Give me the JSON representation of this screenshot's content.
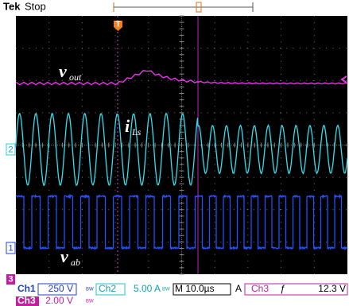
{
  "header": {
    "brand": "Tek",
    "status": "Stop"
  },
  "trigger_marker": "T",
  "trace_labels": {
    "vout": {
      "main": "v",
      "sub": "out"
    },
    "iLs": {
      "main": "i",
      "sub": "Ls"
    },
    "vab": {
      "main": "v",
      "sub": "ab"
    }
  },
  "channel_markers": {
    "ch2": "2",
    "ch1": "1",
    "ch3": "3"
  },
  "status_bar": {
    "row1": {
      "ch1": "Ch1",
      "ch1_scale": "250 V",
      "ch1_bw": "BW",
      "ch2": "Ch2",
      "ch2_scale": "5.00 A",
      "ch2_bw": "BW",
      "timebase": "M 10.0µs",
      "trig_mode": "A",
      "trig_source": "Ch3",
      "trig_slope": "ƒ",
      "trig_level": "12.3 V"
    },
    "row2": {
      "ch3": "Ch3",
      "ch3_scale": "2.00 V",
      "ch3_bw": "BW"
    }
  }
}
